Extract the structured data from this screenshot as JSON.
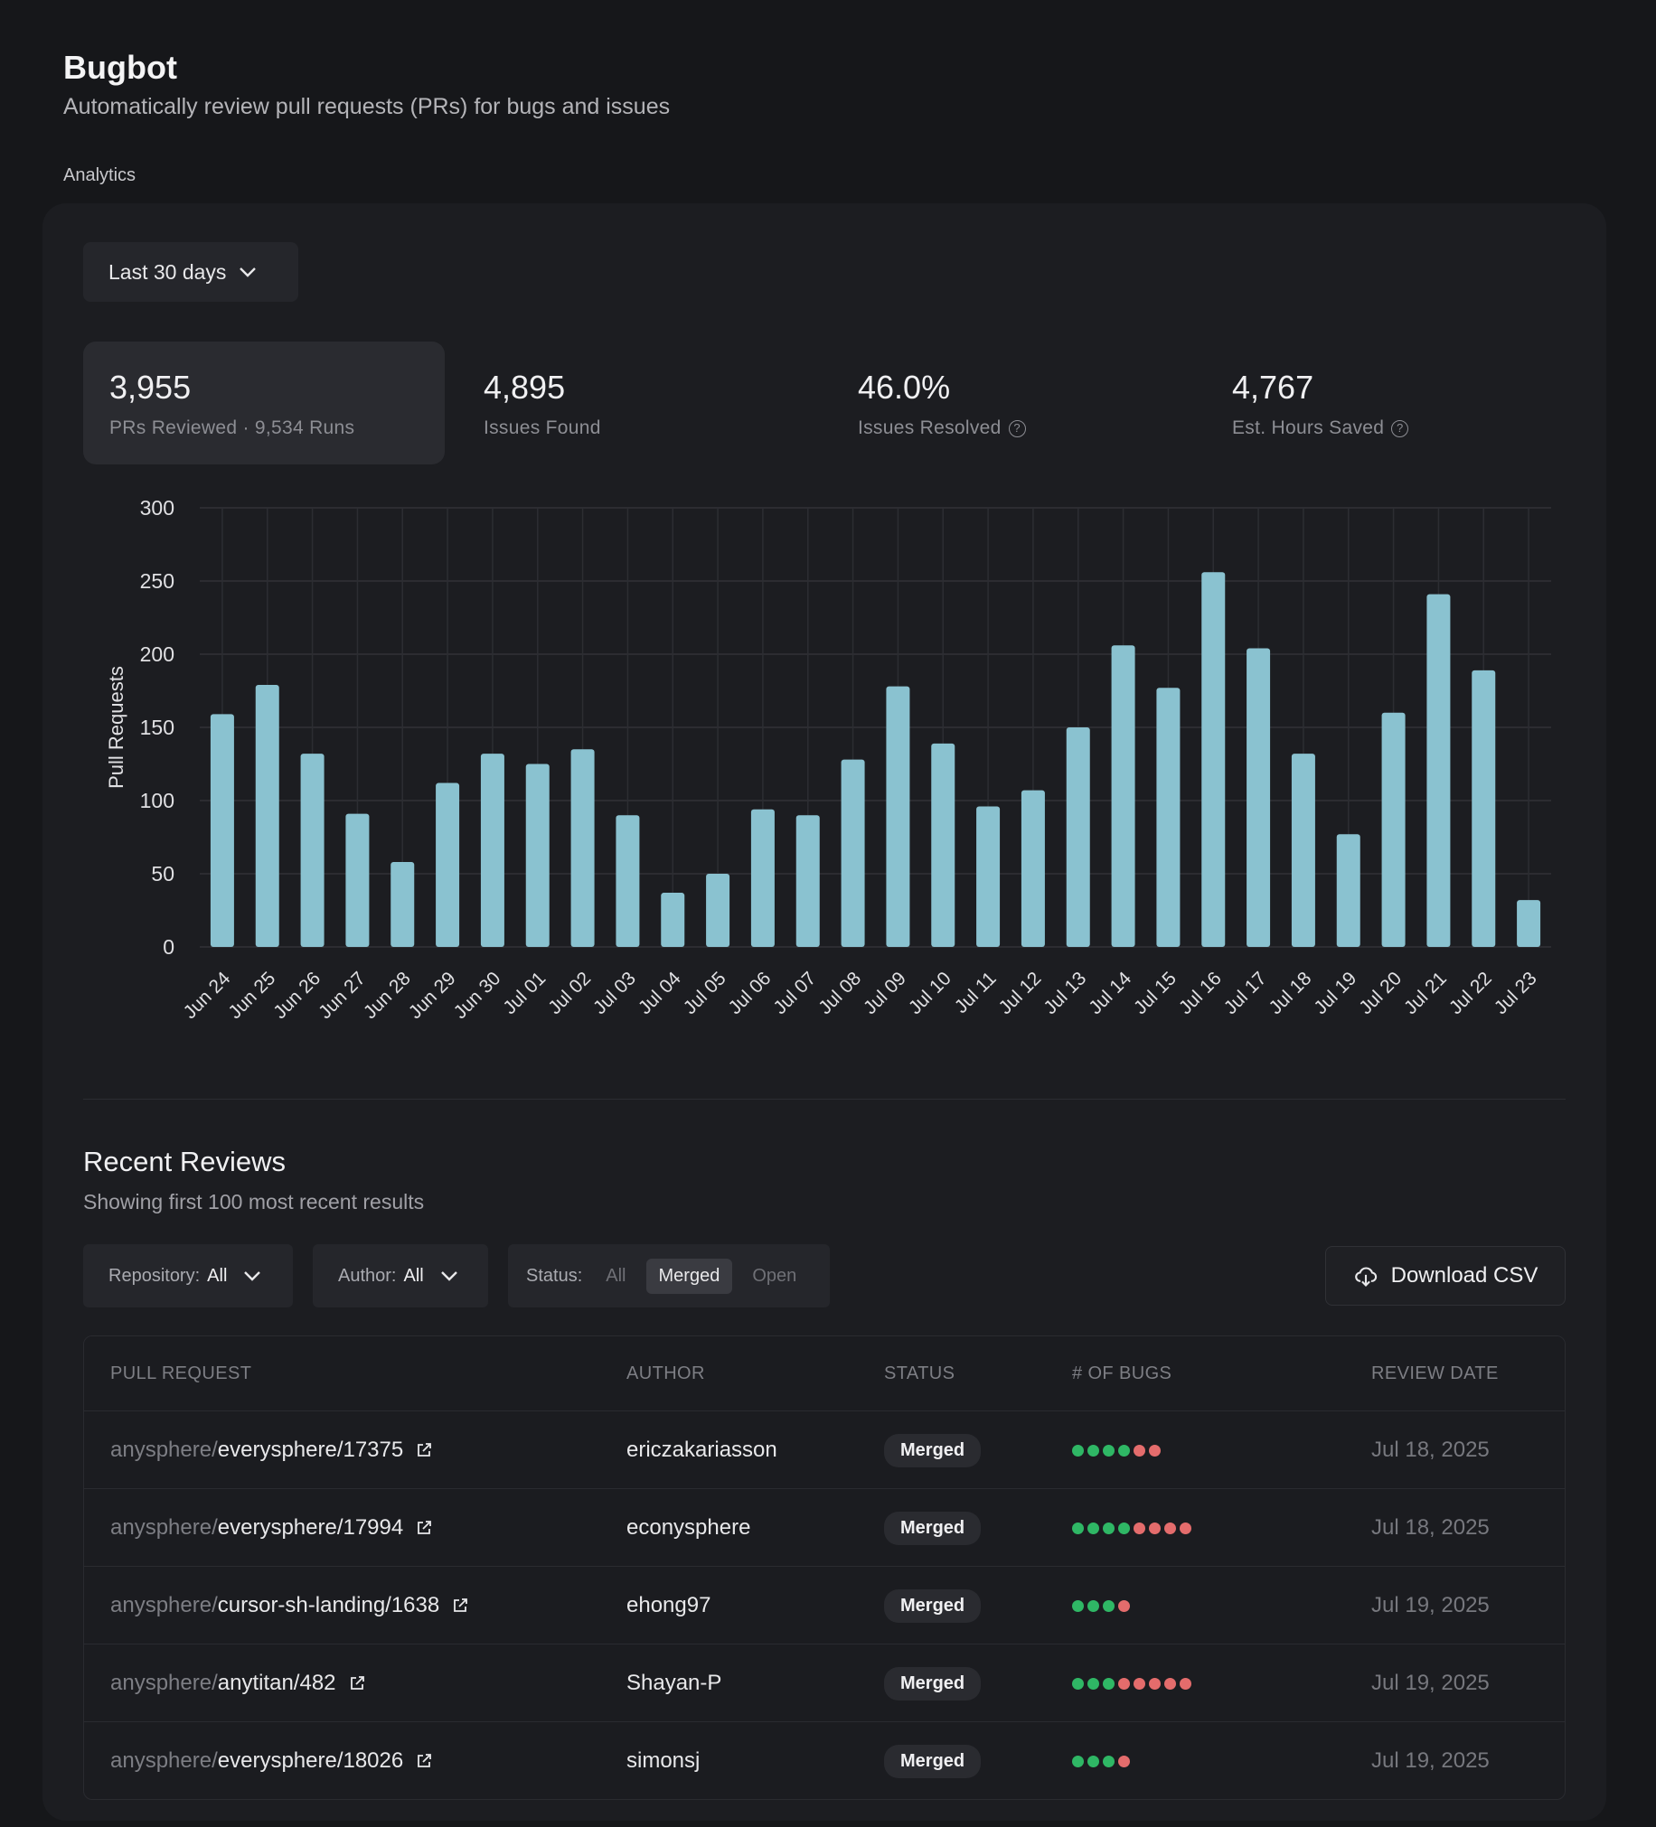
{
  "header": {
    "title": "Bugbot",
    "subtitle": "Automatically review pull requests (PRs) for bugs and issues",
    "section": "Analytics"
  },
  "range": {
    "label": "Last 30 days"
  },
  "stats": [
    {
      "value": "3,955",
      "label": "PRs Reviewed · 9,534 Runs",
      "help": false
    },
    {
      "value": "4,895",
      "label": "Issues Found",
      "help": false
    },
    {
      "value": "46.0%",
      "label": "Issues Resolved",
      "help": true
    },
    {
      "value": "4,767",
      "label": "Est. Hours Saved",
      "help": true
    }
  ],
  "chart_data": {
    "type": "bar",
    "ylabel": "Pull Requests",
    "ylim": [
      0,
      300
    ],
    "yticks": [
      0,
      50,
      100,
      150,
      200,
      250,
      300
    ],
    "grid": true,
    "color": "#8ac2d0",
    "categories": [
      "Jun 24",
      "Jun 25",
      "Jun 26",
      "Jun 27",
      "Jun 28",
      "Jun 29",
      "Jun 30",
      "Jul 01",
      "Jul 02",
      "Jul 03",
      "Jul 04",
      "Jul 05",
      "Jul 06",
      "Jul 07",
      "Jul 08",
      "Jul 09",
      "Jul 10",
      "Jul 11",
      "Jul 12",
      "Jul 13",
      "Jul 14",
      "Jul 15",
      "Jul 16",
      "Jul 17",
      "Jul 18",
      "Jul 19",
      "Jul 20",
      "Jul 21",
      "Jul 22",
      "Jul 23"
    ],
    "values": [
      159,
      179,
      132,
      91,
      58,
      112,
      132,
      125,
      135,
      90,
      37,
      50,
      94,
      90,
      128,
      178,
      139,
      96,
      107,
      150,
      206,
      177,
      256,
      204,
      132,
      77,
      160,
      241,
      189,
      32
    ]
  },
  "reviews": {
    "title": "Recent Reviews",
    "subtitle": "Showing first 100 most recent results",
    "filters": {
      "repo_label": "Repository:",
      "repo_value": "All",
      "author_label": "Author:",
      "author_value": "All",
      "status_label": "Status:",
      "status_options": [
        "All",
        "Merged",
        "Open"
      ],
      "status_selected": "Merged"
    },
    "download_label": "Download CSV",
    "columns": [
      "PULL REQUEST",
      "AUTHOR",
      "STATUS",
      "# OF BUGS",
      "REVIEW DATE"
    ],
    "rows": [
      {
        "org": "anysphere/",
        "repo": "everysphere/17375",
        "author": "ericzakariasson",
        "status": "Merged",
        "green": 4,
        "red": 2,
        "date": "Jul 18, 2025"
      },
      {
        "org": "anysphere/",
        "repo": "everysphere/17994",
        "author": "econysphere",
        "status": "Merged",
        "green": 4,
        "red": 4,
        "date": "Jul 18, 2025"
      },
      {
        "org": "anysphere/",
        "repo": "cursor-sh-landing/1638",
        "author": "ehong97",
        "status": "Merged",
        "green": 3,
        "red": 1,
        "date": "Jul 19, 2025"
      },
      {
        "org": "anysphere/",
        "repo": "anytitan/482",
        "author": "Shayan-P",
        "status": "Merged",
        "green": 3,
        "red": 5,
        "date": "Jul 19, 2025"
      },
      {
        "org": "anysphere/",
        "repo": "everysphere/18026",
        "author": "simonsj",
        "status": "Merged",
        "green": 3,
        "red": 1,
        "date": "Jul 19, 2025"
      }
    ]
  },
  "colors": {
    "bug_ok": "#2fb765",
    "bug_issue": "#e46c6c",
    "bar": "#8ac2d0"
  }
}
